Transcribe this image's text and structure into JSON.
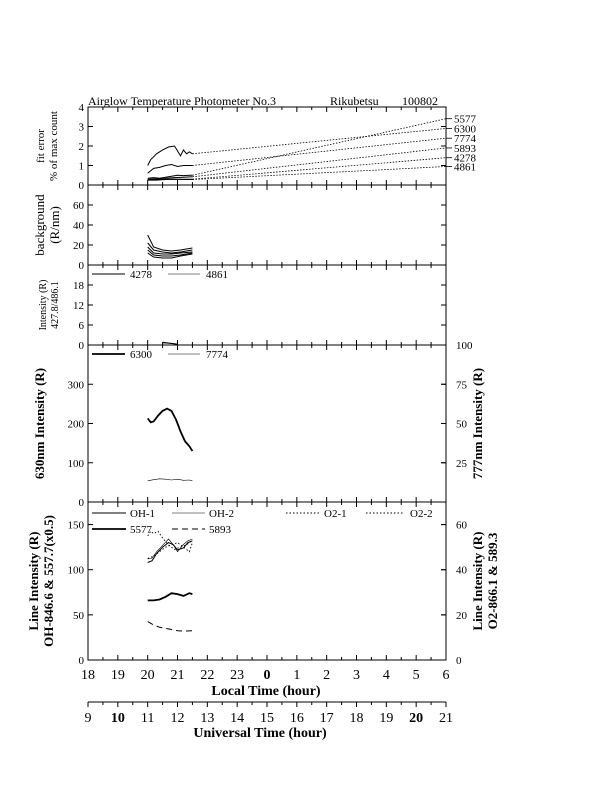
{
  "title": {
    "instrument": "Airglow Temperature Photometer No.3",
    "site": "Rikubetsu",
    "date": "100802"
  },
  "x_axes": {
    "local": {
      "label": "Local Time (hour)",
      "ticks": [
        "18",
        "19",
        "20",
        "21",
        "22",
        "23",
        "0",
        "1",
        "2",
        "3",
        "4",
        "5",
        "6"
      ]
    },
    "universal": {
      "label": "Universal Time (hour)",
      "ticks": [
        "9",
        "10",
        "11",
        "12",
        "13",
        "14",
        "15",
        "16",
        "17",
        "18",
        "19",
        "20",
        "21"
      ]
    }
  },
  "chart_data": [
    {
      "type": "line",
      "id": "fit_error",
      "ylabel": [
        "fit error",
        "% of max count"
      ],
      "ylim": [
        0,
        4
      ],
      "yticks": [
        "0",
        "1",
        "2",
        "3",
        "4"
      ],
      "x_units": "local time hour (18 to 30)",
      "right_labels": [
        "5577",
        "6300",
        "7774",
        "5893",
        "4278",
        "4861"
      ],
      "right_label_values": [
        3.4,
        2.9,
        2.4,
        1.9,
        1.4,
        0.95
      ],
      "series": [
        {
          "name": "5577",
          "style": "solid",
          "x": [
            20.0,
            20.2,
            20.4,
            20.6,
            20.8,
            21.0,
            21.2,
            21.4,
            21.5
          ],
          "y": [
            0.35,
            0.38,
            0.35,
            0.4,
            0.45,
            0.5,
            0.48,
            0.5,
            0.5
          ],
          "end_y": 0.5
        },
        {
          "name": "6300",
          "style": "solid",
          "x": [
            20.0,
            20.1,
            20.3,
            20.5,
            20.7,
            20.9,
            21.0,
            21.1,
            21.2,
            21.3,
            21.4,
            21.5
          ],
          "y": [
            1.0,
            1.3,
            1.6,
            1.8,
            1.95,
            2.0,
            1.75,
            1.5,
            1.8,
            1.6,
            1.7,
            1.6
          ],
          "end_y": 1.6
        },
        {
          "name": "7774",
          "style": "solid",
          "x": [
            20.0,
            20.2,
            20.4,
            20.6,
            20.8,
            21.0,
            21.2,
            21.5
          ],
          "y": [
            0.6,
            0.85,
            0.9,
            1.0,
            1.05,
            0.95,
            1.0,
            1.0
          ],
          "end_y": 1.0
        },
        {
          "name": "5893",
          "style": "solid",
          "x": [
            20.0,
            20.3,
            20.6,
            20.9,
            21.2,
            21.5
          ],
          "y": [
            0.3,
            0.32,
            0.35,
            0.38,
            0.4,
            0.42
          ],
          "end_y": 0.42
        },
        {
          "name": "4278",
          "style": "solid",
          "x": [
            20.0,
            20.3,
            20.6,
            20.9,
            21.2,
            21.5
          ],
          "y": [
            0.28,
            0.28,
            0.3,
            0.3,
            0.3,
            0.3
          ],
          "end_y": 0.3
        },
        {
          "name": "4861",
          "style": "solid",
          "x": [
            20.0,
            20.3,
            20.6,
            20.9,
            21.2,
            21.5
          ],
          "y": [
            0.25,
            0.25,
            0.28,
            0.3,
            0.28,
            0.28
          ],
          "end_y": 0.28
        }
      ]
    },
    {
      "type": "line",
      "id": "background",
      "ylabel": [
        "background",
        "(R/nm)"
      ],
      "ylim": [
        0,
        80
      ],
      "yticks": [
        "0",
        "20",
        "40",
        "60"
      ],
      "series": [
        {
          "style": "solid",
          "x": [
            20.0,
            20.2,
            20.5,
            20.8,
            21.1,
            21.5
          ],
          "y": [
            30,
            18,
            15,
            14,
            15,
            17
          ]
        },
        {
          "style": "solid",
          "x": [
            20.0,
            20.2,
            20.5,
            20.8,
            21.1,
            21.5
          ],
          "y": [
            22,
            15,
            13,
            12,
            13,
            15
          ]
        },
        {
          "style": "solid",
          "x": [
            20.0,
            20.2,
            20.5,
            20.8,
            21.1,
            21.5
          ],
          "y": [
            18,
            12,
            11,
            11,
            12,
            13
          ]
        },
        {
          "style": "solid",
          "x": [
            20.0,
            20.2,
            20.5,
            20.8,
            21.1,
            21.5
          ],
          "y": [
            15,
            10,
            9,
            9,
            10,
            12
          ]
        },
        {
          "style": "solid",
          "x": [
            20.0,
            20.2,
            20.5,
            20.8,
            21.1,
            21.5
          ],
          "y": [
            12,
            8,
            7,
            7,
            9,
            11
          ]
        }
      ]
    },
    {
      "type": "line",
      "id": "intensity_4278_4861",
      "ylabel": [
        "Intensity (R)",
        "427.8/486.1"
      ],
      "ylim": [
        0,
        24
      ],
      "yticks": [
        "0",
        "6",
        "12",
        "18"
      ],
      "legend": [
        "4278",
        "4861"
      ],
      "series": [
        {
          "name": "4278",
          "style": "solid",
          "x": [
            20.5,
            20.7,
            20.9,
            21.0
          ],
          "y": [
            0.8,
            0.6,
            0.4,
            0.2
          ]
        },
        {
          "name": "4861",
          "style": "thin",
          "x": [
            20.5,
            20.7,
            20.9,
            21.0
          ],
          "y": [
            0.6,
            0.5,
            0.3,
            0.2
          ]
        }
      ]
    },
    {
      "type": "line",
      "id": "intensity_6300_7774",
      "ylabel": "630nm Intensity (R)",
      "ylim": [
        0,
        400
      ],
      "yticks": [
        "0",
        "100",
        "200",
        "300"
      ],
      "y2label": "777nm Intensity (R)",
      "y2lim": [
        0,
        100
      ],
      "y2ticks": [
        "25",
        "50",
        "75",
        "100"
      ],
      "legend": [
        "6300",
        "7774"
      ],
      "series": [
        {
          "name": "6300",
          "axis": "left",
          "style": "thick",
          "x": [
            20.0,
            20.1,
            20.2,
            20.35,
            20.5,
            20.65,
            20.8,
            20.95,
            21.1,
            21.25,
            21.4,
            21.5
          ],
          "y": [
            213,
            203,
            205,
            220,
            232,
            238,
            232,
            210,
            180,
            155,
            142,
            130
          ]
        },
        {
          "name": "7774",
          "axis": "right",
          "style": "thin",
          "x": [
            20.0,
            20.2,
            20.4,
            20.6,
            20.8,
            21.0,
            21.2,
            21.4,
            21.5
          ],
          "y": [
            13.5,
            14.2,
            14.8,
            14.5,
            14.0,
            14.5,
            13.8,
            14.0,
            13.5
          ]
        }
      ]
    },
    {
      "type": "line",
      "id": "line_intensity",
      "ylabel": [
        "Line Intensity (R)",
        "OH-846.6 & 557.7(x0.5)"
      ],
      "ylim": [
        0,
        175
      ],
      "yticks": [
        "0",
        "50",
        "100",
        "150"
      ],
      "y2label": [
        "Line Intensity (R)",
        "O2-866.1 & 589.3"
      ],
      "y2lim": [
        0,
        70
      ],
      "y2ticks": [
        "0",
        "20",
        "40",
        "60"
      ],
      "legend": [
        "OH-1",
        "OH-2",
        "O2-1",
        "O2-2",
        "5577",
        "5893"
      ],
      "series": [
        {
          "name": "OH-1",
          "axis": "left",
          "style": "solid",
          "x": [
            20.0,
            20.15,
            20.3,
            20.5,
            20.7,
            20.85,
            21.0,
            21.2,
            21.35,
            21.5
          ],
          "y": [
            108,
            110,
            118,
            125,
            130,
            128,
            122,
            124,
            130,
            132
          ]
        },
        {
          "name": "OH-2",
          "axis": "left",
          "style": "thin",
          "x": [
            20.0,
            20.15,
            20.3,
            20.5,
            20.7,
            20.85,
            21.0,
            21.2,
            21.35,
            21.5
          ],
          "y": [
            112,
            113,
            120,
            127,
            134,
            128,
            120,
            128,
            132,
            134
          ]
        },
        {
          "name": "O2-1",
          "axis": "right",
          "style": "dotted",
          "x": [
            20.0,
            20.1,
            20.2,
            20.35,
            20.5,
            20.7,
            20.9,
            21.1,
            21.3,
            21.5
          ],
          "y": [
            55,
            57,
            56,
            57,
            54,
            51,
            49,
            50,
            51,
            53
          ]
        },
        {
          "name": "O2-2",
          "axis": "right",
          "style": "dotted",
          "x": [
            20.0,
            20.2,
            20.4,
            20.6,
            20.8,
            21.0,
            21.2,
            21.4,
            21.5
          ],
          "y": [
            45,
            46,
            48,
            50,
            51,
            52,
            50,
            48,
            52
          ]
        },
        {
          "name": "5577",
          "axis": "left",
          "style": "thick",
          "x": [
            20.0,
            20.2,
            20.4,
            20.6,
            20.8,
            21.0,
            21.2,
            21.4,
            21.5
          ],
          "y": [
            66,
            66,
            67,
            70,
            74,
            73,
            71,
            74,
            73
          ]
        },
        {
          "name": "5893",
          "axis": "right",
          "style": "dashed",
          "x": [
            20.0,
            20.2,
            20.4,
            20.6,
            20.8,
            21.0,
            21.2,
            21.5
          ],
          "y": [
            17,
            15.5,
            14.5,
            14,
            13.5,
            13,
            12.8,
            13
          ]
        }
      ]
    }
  ]
}
